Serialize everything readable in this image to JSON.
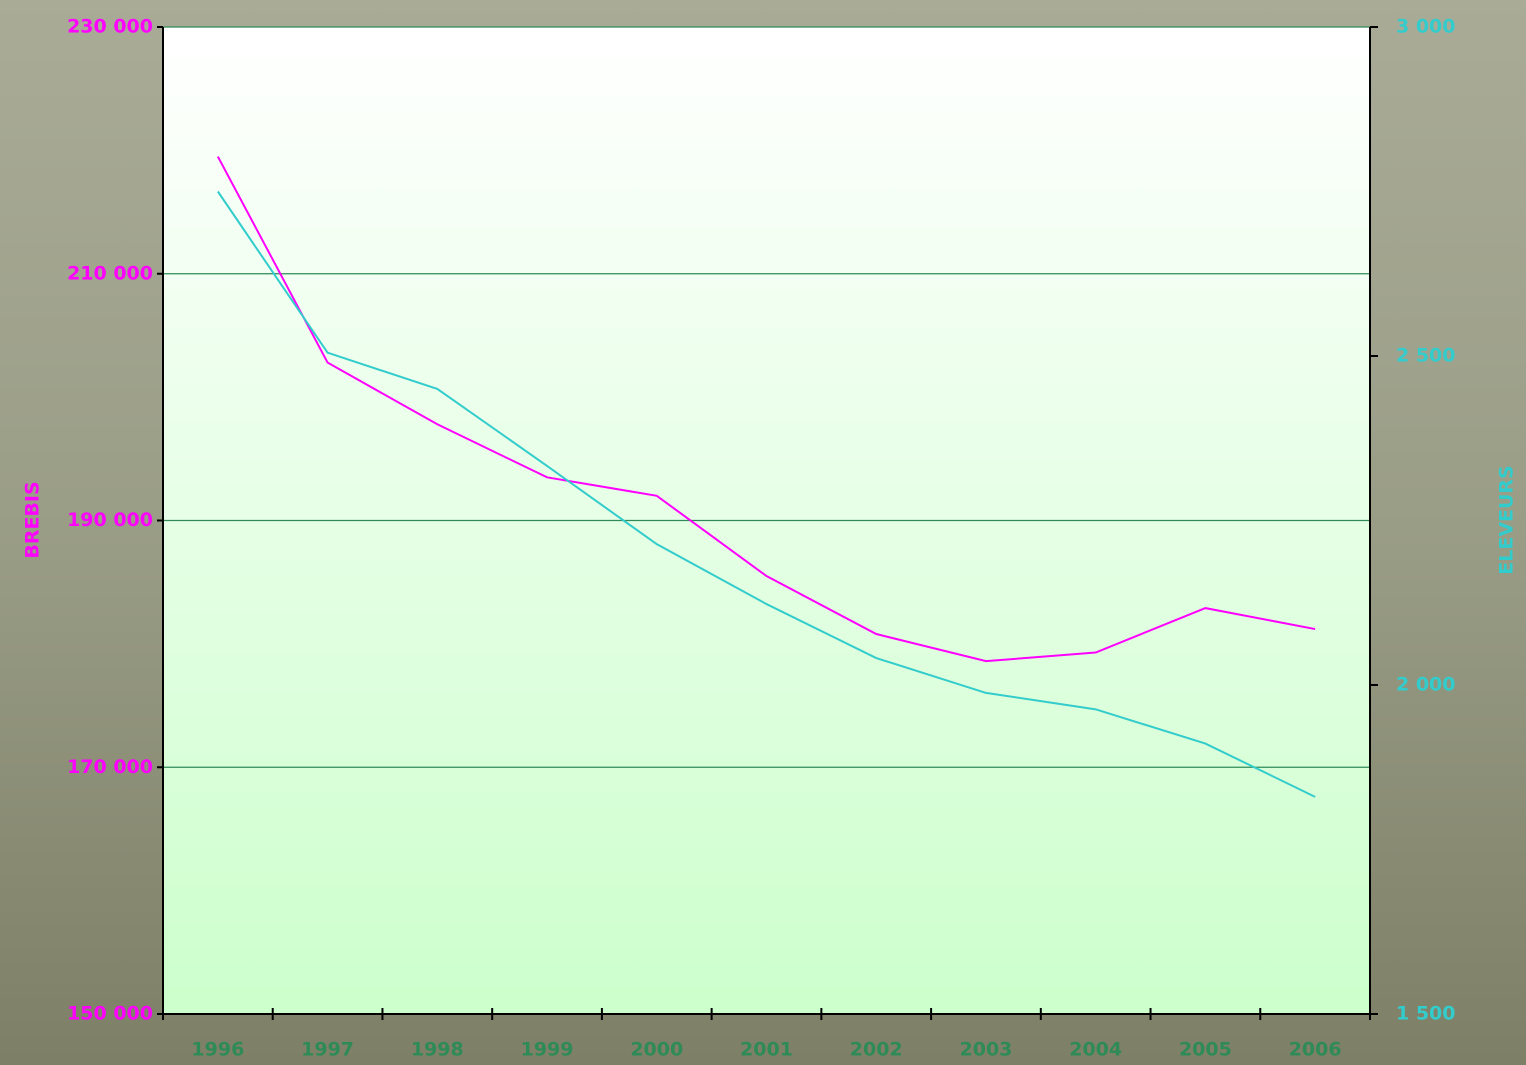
{
  "chart_data": {
    "type": "line",
    "categories": [
      "1996",
      "1997",
      "1998",
      "1999",
      "2000",
      "2001",
      "2002",
      "2003",
      "2004",
      "2005",
      "2006"
    ],
    "y_label": "BREBIS",
    "y2_label": "ELEVEURS",
    "series": [
      {
        "name": "BREBIS",
        "color": "#ff00ff",
        "values": [
          219500,
          202800,
          197800,
          193500,
          192000,
          185500,
          180800,
          178600,
          179300,
          182900,
          181200
        ]
      },
      {
        "name": "ELEVEURS",
        "color": "#33cccc",
        "axis": "y2",
        "values": [
          2750,
          2505,
          2450,
          2333,
          2214,
          2123,
          2041,
          1988,
          1963,
          1911,
          1830
        ]
      }
    ],
    "ylim": [
      150000,
      230000
    ],
    "yticks": [
      {
        "value": 150000,
        "label": "150 000"
      },
      {
        "value": 170000,
        "label": "170 000"
      },
      {
        "value": 190000,
        "label": "190 000"
      },
      {
        "value": 210000,
        "label": "210 000"
      },
      {
        "value": 230000,
        "label": "230 000"
      }
    ],
    "y2lim": [
      1500,
      3000
    ],
    "y2ticks": [
      {
        "value": 1500,
        "label": "1 500"
      },
      {
        "value": 2000,
        "label": "2 000"
      },
      {
        "value": 2500,
        "label": "2 500"
      },
      {
        "value": 3000,
        "label": "3 000"
      }
    ],
    "grid": true
  }
}
